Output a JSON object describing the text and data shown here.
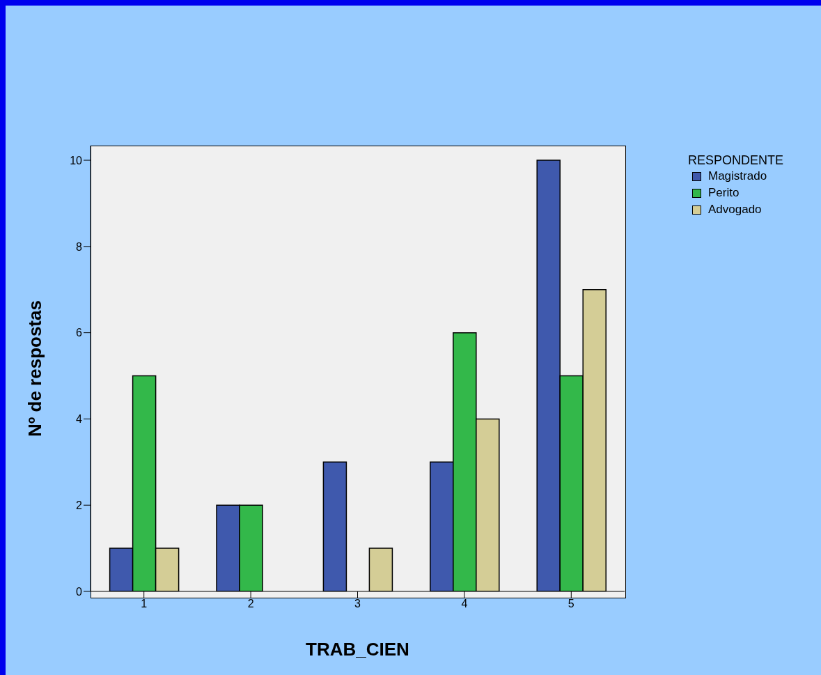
{
  "chart_data": {
    "type": "bar",
    "xlabel": "TRAB_CIEN",
    "ylabel": "Nº de respostas",
    "legend_title": "RESPONDENTE",
    "legend": "top right",
    "categories": [
      "1",
      "2",
      "3",
      "4",
      "5"
    ],
    "ylim": [
      0,
      10.34
    ],
    "yticks": [
      0,
      2,
      4,
      6,
      8,
      10
    ],
    "series": [
      {
        "name": "Magistrado",
        "color": "#3f59ad",
        "values": [
          1,
          2,
          3,
          3,
          10
        ]
      },
      {
        "name": "Perito",
        "color": "#33b84a",
        "values": [
          5,
          2,
          0,
          6,
          5
        ]
      },
      {
        "name": "Advogado",
        "color": "#d4cd96",
        "values": [
          1,
          0,
          1,
          4,
          7
        ]
      }
    ]
  }
}
